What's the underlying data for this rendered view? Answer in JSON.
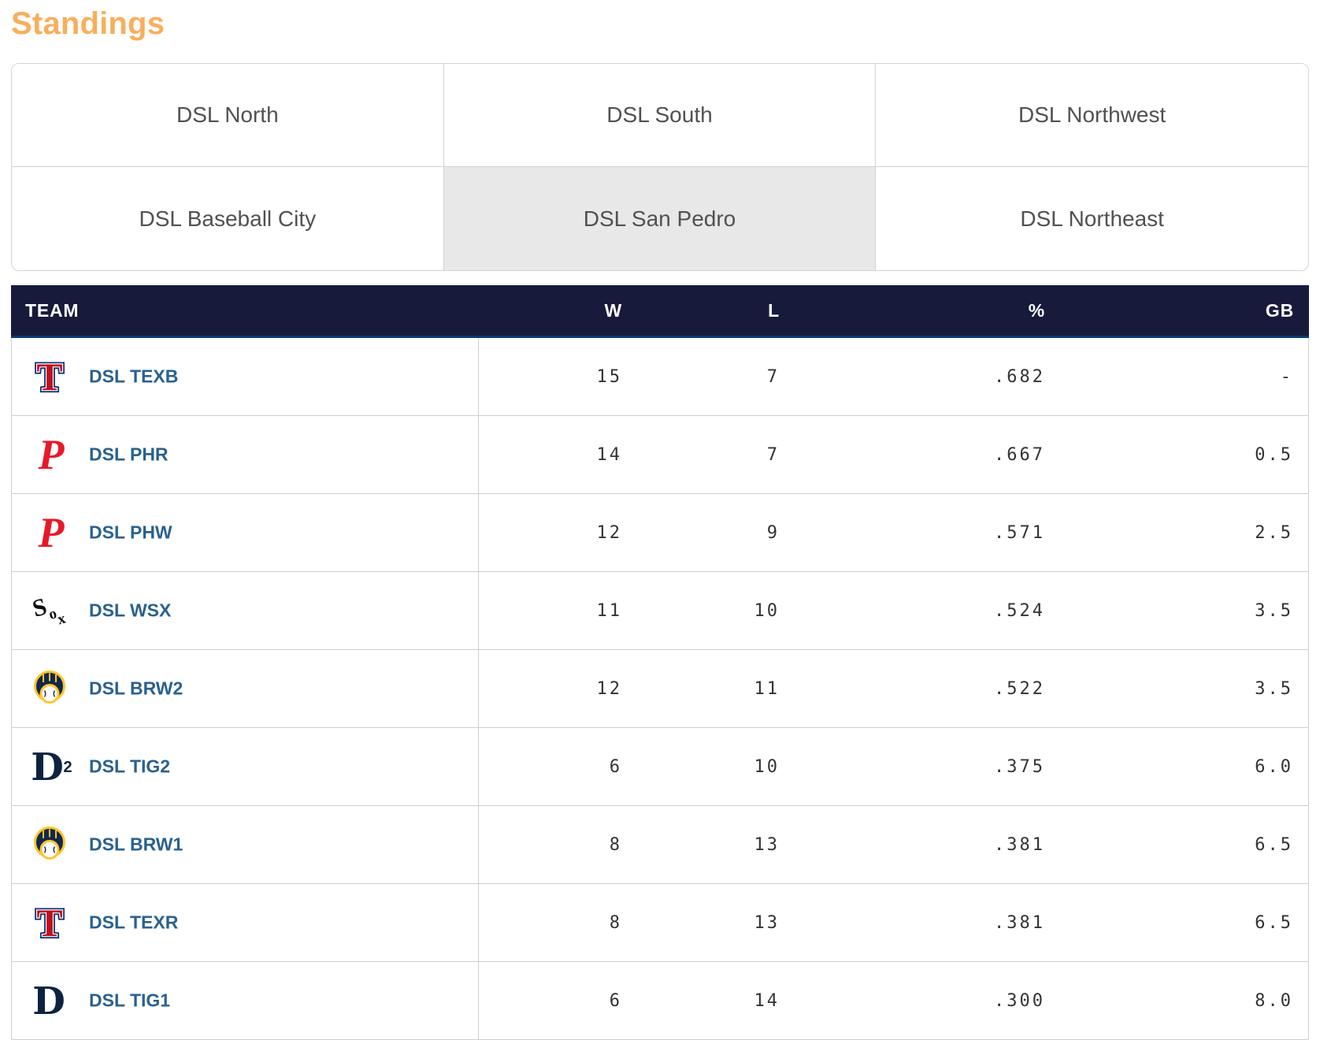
{
  "page": {
    "title": "Standings"
  },
  "colors": {
    "title_orange": "#F9AE5C",
    "header_navy": "#171A3B",
    "header_underline": "#0A3A74",
    "link_blue": "#2A618F",
    "tab_text": "#515155",
    "tab_selected_bg": "#E8E8E8",
    "border_gray": "#D3D3D3",
    "row_border": "#CFCFCF",
    "number_gray": "#333333"
  },
  "logo_palette": {
    "rangers_red": "#C0111F",
    "rangers_navy": "#0B3275",
    "phillies_red": "#E81828",
    "whitesox_black": "#0E0E0E",
    "brewers_navy": "#12284B",
    "brewers_gold": "#FFC52F",
    "tigers_navy": "#0C2340"
  },
  "tabs": [
    {
      "label": "DSL North",
      "selected": false
    },
    {
      "label": "DSL South",
      "selected": false
    },
    {
      "label": "DSL Northwest",
      "selected": false
    },
    {
      "label": "DSL Baseball City",
      "selected": false
    },
    {
      "label": "DSL San Pedro",
      "selected": true
    },
    {
      "label": "DSL Northeast",
      "selected": false
    }
  ],
  "standings": {
    "columns": [
      "TEAM",
      "W",
      "L",
      "%",
      "GB"
    ],
    "rows": [
      {
        "team": "DSL TEXB",
        "logo": "rangers",
        "logo_icon": "rangers-logo-icon",
        "w": "15",
        "l": "7",
        "pct": ".682",
        "gb": "-"
      },
      {
        "team": "DSL PHR",
        "logo": "phillies",
        "logo_icon": "phillies-logo-icon",
        "w": "14",
        "l": "7",
        "pct": ".667",
        "gb": "0.5"
      },
      {
        "team": "DSL PHW",
        "logo": "phillies",
        "logo_icon": "phillies-logo-icon",
        "w": "12",
        "l": "9",
        "pct": ".571",
        "gb": "2.5"
      },
      {
        "team": "DSL WSX",
        "logo": "whitesox",
        "logo_icon": "white-sox-logo-icon",
        "w": "11",
        "l": "10",
        "pct": ".524",
        "gb": "3.5"
      },
      {
        "team": "DSL BRW2",
        "logo": "brewers",
        "logo_icon": "brewers-logo-icon",
        "w": "12",
        "l": "11",
        "pct": ".522",
        "gb": "3.5"
      },
      {
        "team": "DSL TIG2",
        "logo": "tigers2",
        "logo_icon": "tigers-2-logo-icon",
        "w": "6",
        "l": "10",
        "pct": ".375",
        "gb": "6.0"
      },
      {
        "team": "DSL BRW1",
        "logo": "brewers",
        "logo_icon": "brewers-logo-icon",
        "w": "8",
        "l": "13",
        "pct": ".381",
        "gb": "6.5"
      },
      {
        "team": "DSL TEXR",
        "logo": "rangers",
        "logo_icon": "rangers-logo-icon",
        "w": "8",
        "l": "13",
        "pct": ".381",
        "gb": "6.5"
      },
      {
        "team": "DSL TIG1",
        "logo": "tigers",
        "logo_icon": "tigers-logo-icon",
        "w": "6",
        "l": "14",
        "pct": ".300",
        "gb": "8.0"
      }
    ]
  }
}
